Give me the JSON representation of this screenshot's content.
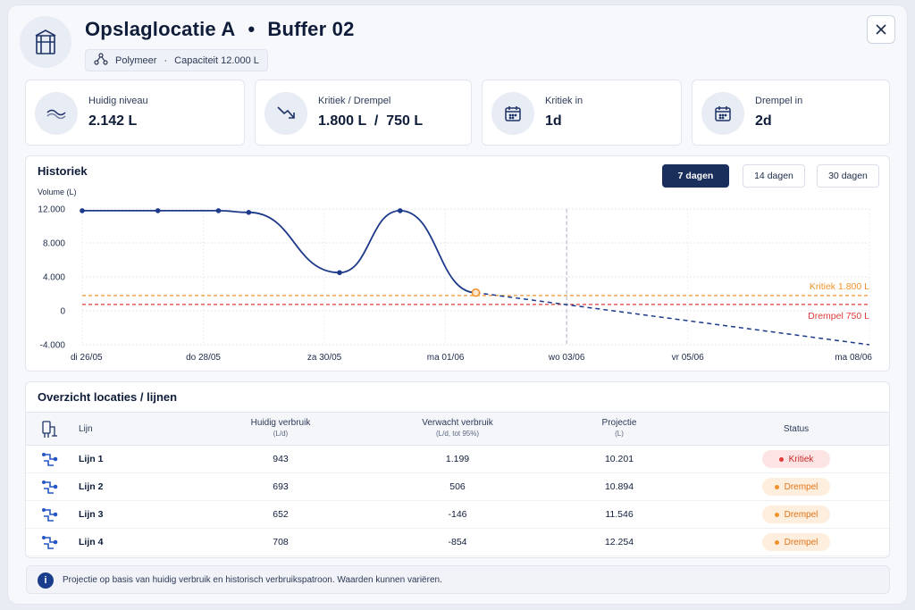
{
  "header": {
    "location": "Opslaglocatie A",
    "separator": "•",
    "buffer": "Buffer 02",
    "product": "Polymeer",
    "meta_separator": "·",
    "capacity": "Capaciteit 12.000 L",
    "icons": {
      "logo": "tank-icon",
      "product": "molecule-icon",
      "close": "close-icon"
    }
  },
  "kpis": [
    {
      "label": "Huidig niveau",
      "value": "2.142 L",
      "icon": "wave-icon"
    },
    {
      "label": "Kritiek / Drempel",
      "value": "1.800 L  /  750 L",
      "icon": "trend-down-icon"
    },
    {
      "label": "Kritiek in",
      "value": "1d",
      "icon": "calendar-icon"
    },
    {
      "label": "Drempel in",
      "value": "2d",
      "icon": "calendar-icon"
    }
  ],
  "history": {
    "title": "Historiek",
    "ranges": [
      "7 dagen",
      "14 dagen",
      "30 dagen"
    ],
    "active_range": "7 dagen"
  },
  "chart_data": {
    "type": "line",
    "ylabel": "Volume (L)",
    "ylim": [
      -4000,
      12000
    ],
    "yticks": [
      "12.000",
      "8.000",
      "4.000",
      "0",
      "-4.000"
    ],
    "xticks": [
      "di 26/05",
      "do 28/05",
      "za 30/05",
      "ma 01/06",
      "wo 03/06",
      "vr 05/06",
      "ma 08/06"
    ],
    "history": {
      "x": [
        "26/05 00:00",
        "27/05 06:00",
        "28/05 06:00",
        "28/05 18:00",
        "30/05 06:00",
        "31/05 06:00",
        "01/06 12:00"
      ],
      "y": [
        11800,
        11800,
        11800,
        11600,
        4500,
        11800,
        2142
      ]
    },
    "projection": {
      "x": [
        "01/06 12:00",
        "08/06 00:00"
      ],
      "y": [
        2142,
        -4000
      ]
    },
    "thresholds": [
      {
        "label": "Kritiek 1.800 L",
        "value": 1800,
        "color": "#f0922b"
      },
      {
        "label": "Drempel 750 L",
        "value": 750,
        "color": "#e03a3a"
      }
    ],
    "now_marker": "wo 03/06",
    "grid": true,
    "colors": {
      "history": "#1d3a8a",
      "projection": "#1d3a8a",
      "current_point": "#f0922b"
    }
  },
  "overview": {
    "title": "Overzicht locaties / lijnen",
    "columns": {
      "line": "Lijn",
      "current": "Huidig verbruik",
      "current_unit": "(L/d)",
      "expected": "Verwacht verbruik",
      "expected_unit": "(L/d, tot 95%)",
      "projection": "Projectie",
      "projection_unit": "(L)",
      "status": "Status"
    },
    "rows": [
      {
        "name": "Lijn 1",
        "current": "943",
        "expected": "1.199",
        "projection": "10.201",
        "status": "Kritiek"
      },
      {
        "name": "Lijn 2",
        "current": "693",
        "expected": "506",
        "projection": "10.894",
        "status": "Drempel"
      },
      {
        "name": "Lijn 3",
        "current": "652",
        "expected": "-146",
        "projection": "11.546",
        "status": "Drempel"
      },
      {
        "name": "Lijn 4",
        "current": "708",
        "expected": "-854",
        "projection": "12.254",
        "status": "Drempel"
      }
    ],
    "status_colors": {
      "Kritiek": {
        "bg": "#fde4e4",
        "fg": "#c62828",
        "dot": "#e03a3a"
      },
      "Drempel": {
        "bg": "#fdeedd",
        "fg": "#e0741a",
        "dot": "#f0922b"
      }
    }
  },
  "footer": {
    "note": "Projectie op basis van huidig verbruik en historisch verbruikspatroon. Waarden kunnen variëren."
  }
}
